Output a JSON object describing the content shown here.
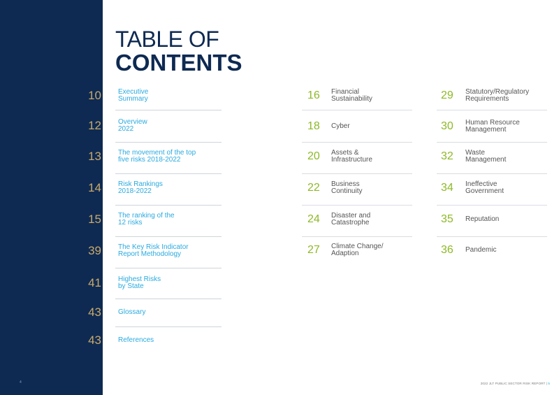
{
  "title": {
    "line1": "TABLE OF",
    "line2": "CONTENTS"
  },
  "left_entries": [
    {
      "page": "10",
      "label": "Executive\nSummary"
    },
    {
      "page": "12",
      "label": "Overview\n2022"
    },
    {
      "page": "13",
      "label": "The movement of the top\nfive risks 2018-2022"
    },
    {
      "page": "14",
      "label": "Risk Rankings\n2018-2022"
    },
    {
      "page": "15",
      "label": "The ranking of the\n12 risks"
    },
    {
      "page": "39",
      "label": "The Key Risk Indicator\nReport Methodology"
    },
    {
      "page": "41",
      "label": "Highest Risks\nby State"
    },
    {
      "page": "43",
      "label": "Glossary"
    },
    {
      "page": "43",
      "label": "References"
    }
  ],
  "middle_entries": [
    {
      "page": "16",
      "label": "Financial\nSustainability"
    },
    {
      "page": "18",
      "label": "Cyber"
    },
    {
      "page": "20",
      "label": "Assets &\nInfrastructure"
    },
    {
      "page": "22",
      "label": "Business\nContinuity"
    },
    {
      "page": "24",
      "label": "Disaster and\nCatastrophe"
    },
    {
      "page": "27",
      "label": "Climate Change/\nAdaption"
    }
  ],
  "right_entries": [
    {
      "page": "29",
      "label": "Statutory/Regulatory\nRequirements"
    },
    {
      "page": "30",
      "label": "Human Resource\nManagement"
    },
    {
      "page": "32",
      "label": "Waste\nManagement"
    },
    {
      "page": "34",
      "label": "Ineffective\nGovernment"
    },
    {
      "page": "35",
      "label": "Reputation"
    },
    {
      "page": "36",
      "label": "Pandemic"
    }
  ],
  "footer": {
    "left_page": "4",
    "report_name": "2022 JLT PUBLIC SECTOR RISK REPORT",
    "separator": " | ",
    "right_page": "5"
  }
}
